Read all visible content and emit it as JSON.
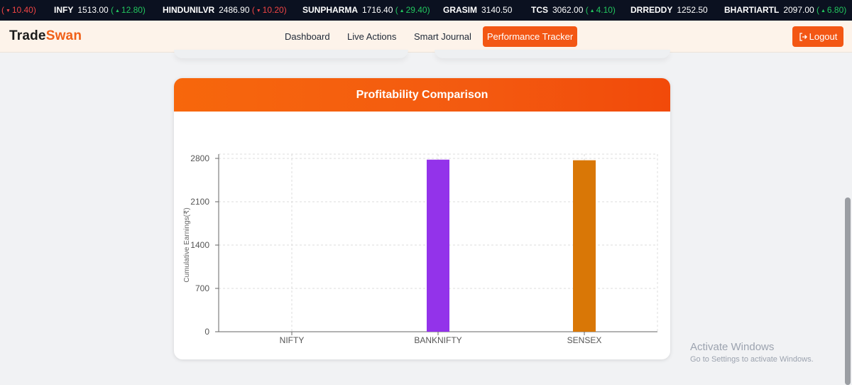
{
  "ticker": [
    {
      "symbol": "",
      "price": "",
      "change": "10.40",
      "dir": "down",
      "open": true
    },
    {
      "symbol": "INFY",
      "price": "1513.00",
      "change": "12.80",
      "dir": "up"
    },
    {
      "symbol": "HINDUNILVR",
      "price": "2486.90",
      "change": "10.20",
      "dir": "down"
    },
    {
      "symbol": "SUNPHARMA",
      "price": "1716.40",
      "change": "29.40",
      "dir": "up"
    },
    {
      "symbol": "GRASIM",
      "price": "3140.50",
      "change": "",
      "dir": ""
    },
    {
      "symbol": "TCS",
      "price": "3062.00",
      "change": "4.10",
      "dir": "up"
    },
    {
      "symbol": "DRREDDY",
      "price": "1252.50",
      "change": "",
      "dir": ""
    },
    {
      "symbol": "BHARTIARTL",
      "price": "2097.00",
      "change": "6.80",
      "dir": "up"
    }
  ],
  "brand": {
    "part1": "Trade",
    "part2": "Swan"
  },
  "nav": {
    "links": [
      "Dashboard",
      "Live Actions",
      "Smart Journal"
    ],
    "active": "Performance Tracker",
    "logout": "Logout"
  },
  "colors": {
    "accent": "#f35714",
    "up": "#22c55e",
    "down": "#ef4444"
  },
  "card": {
    "title": "Profitability Comparison"
  },
  "chart_data": {
    "type": "bar",
    "categories": [
      "NIFTY",
      "BANKNIFTY",
      "SENSEX"
    ],
    "values": [
      0,
      2780,
      2770
    ],
    "colors": [
      "#9333ea",
      "#9333ea",
      "#d97706"
    ],
    "ylabel": "Cumulative Earnings(₹)",
    "yticks": [
      0,
      700,
      1400,
      2100,
      2800
    ],
    "ylim": [
      0,
      2800
    ],
    "grid": true
  },
  "watermark": {
    "line1": "Activate Windows",
    "line2": "Go to Settings to activate Windows."
  }
}
